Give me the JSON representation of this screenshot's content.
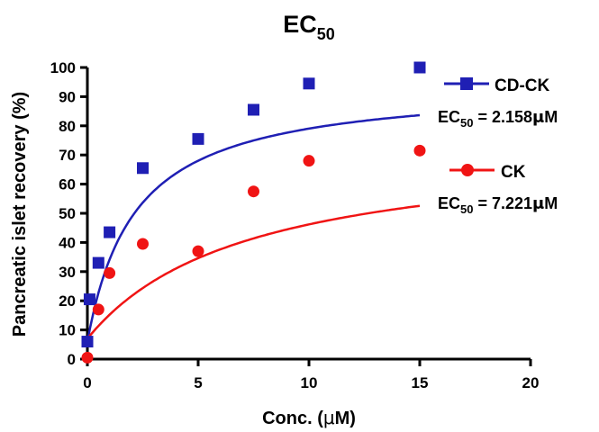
{
  "chart_data": {
    "type": "scatter",
    "title": {
      "main": "EC",
      "sub": "50"
    },
    "xlabel": {
      "before": "Conc. (",
      "mu": "μ",
      "after": "M)"
    },
    "ylabel": "Pancreatic islet recovery (%)",
    "xlim": [
      0,
      20
    ],
    "ylim": [
      0,
      100
    ],
    "xticks": [
      0,
      5,
      10,
      15,
      20
    ],
    "yticks": [
      0,
      10,
      20,
      30,
      40,
      50,
      60,
      70,
      80,
      90,
      100
    ],
    "grid": false,
    "legend_position": "right",
    "series": [
      {
        "name": "CD-CK",
        "color": "#1f1fb4",
        "marker": "square",
        "ec50_text": {
          "pre": "EC",
          "sub": "50",
          "mid": " = 2.158",
          "mu": "μ",
          "post": "M"
        },
        "points": [
          [
            0,
            6
          ],
          [
            0.1,
            20.5
          ],
          [
            0.5,
            33
          ],
          [
            1,
            43.5
          ],
          [
            2.5,
            65.5
          ],
          [
            5,
            75.5
          ],
          [
            7.5,
            85.5
          ],
          [
            10,
            94.5
          ],
          [
            15,
            100
          ]
        ],
        "fit": {
          "top": 94.8,
          "ec50": 2.158,
          "bottom": 6
        }
      },
      {
        "name": "CK",
        "color": "#f01414",
        "marker": "circle",
        "ec50_text": {
          "pre": "EC",
          "sub": "50",
          "mid": " = 7.221",
          "mu": "μ",
          "post": "M"
        },
        "points": [
          [
            0,
            0.5
          ],
          [
            0.5,
            17
          ],
          [
            1,
            29.5
          ],
          [
            2.5,
            39.5
          ],
          [
            5,
            37
          ],
          [
            7.5,
            57.5
          ],
          [
            10,
            68
          ],
          [
            15,
            71.5
          ]
        ],
        "fit": {
          "top": 74.5,
          "ec50": 7.221,
          "bottom": 7
        }
      }
    ]
  }
}
